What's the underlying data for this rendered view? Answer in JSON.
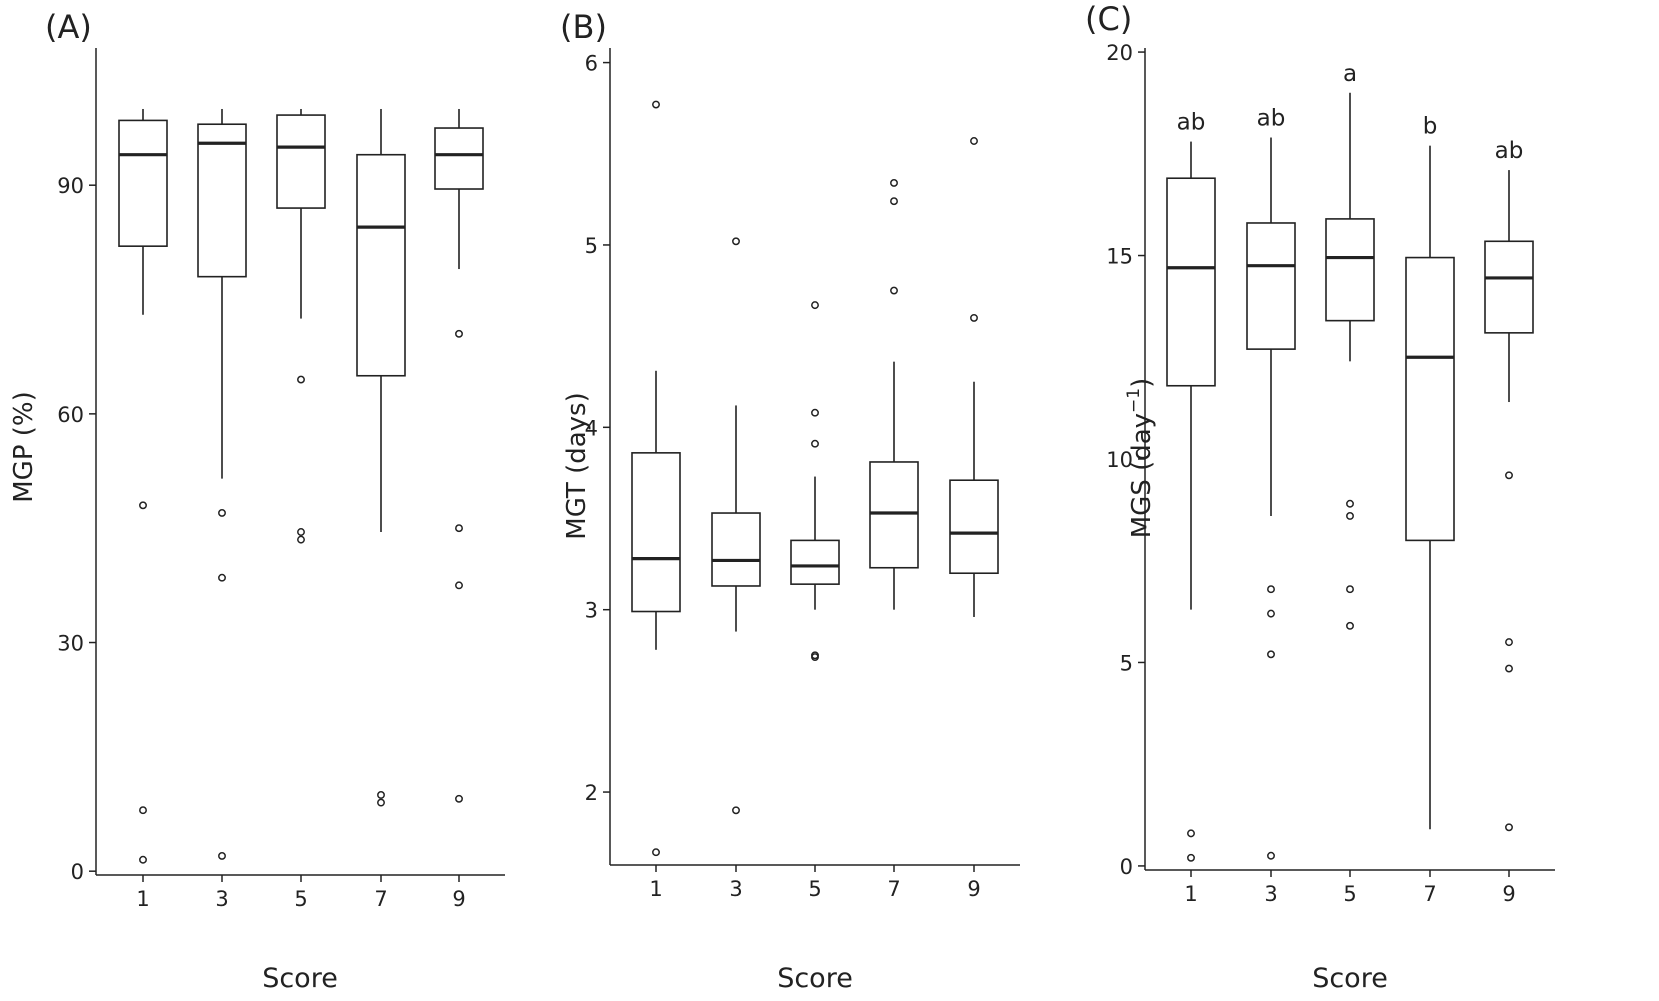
{
  "chart_data": [
    {
      "type": "box",
      "panel_label": "(A)",
      "xlabel": "Score",
      "ylabel": "MGP (%)",
      "ylim": [
        -0.5,
        108
      ],
      "yticks": [
        0,
        30,
        60,
        90
      ],
      "categories": [
        "1",
        "3",
        "5",
        "7",
        "9"
      ],
      "boxes": [
        {
          "q1": 82,
          "median": 94,
          "q3": 98.5,
          "whisker_low": 73,
          "whisker_high": 100,
          "outliers": [
            48,
            8,
            1.5
          ]
        },
        {
          "q1": 78,
          "median": 95.5,
          "q3": 98,
          "whisker_low": 51.5,
          "whisker_high": 100,
          "outliers": [
            47,
            38.5,
            2
          ]
        },
        {
          "q1": 87,
          "median": 95,
          "q3": 99.2,
          "whisker_low": 72.5,
          "whisker_high": 100,
          "outliers": [
            64.5,
            44.5,
            43.5
          ]
        },
        {
          "q1": 65,
          "median": 84.5,
          "q3": 94,
          "whisker_low": 44.5,
          "whisker_high": 100,
          "outliers": [
            10,
            9
          ]
        },
        {
          "q1": 89.5,
          "median": 94,
          "q3": 97.5,
          "whisker_low": 79,
          "whisker_high": 100,
          "outliers": [
            70.5,
            45,
            37.5,
            9.5
          ]
        }
      ]
    },
    {
      "type": "box",
      "panel_label": "(B)",
      "xlabel": "Score",
      "ylabel": "MGT (days)",
      "ylim": [
        1.6,
        6.08
      ],
      "yticks": [
        2,
        3,
        4,
        5,
        6
      ],
      "categories": [
        "1",
        "3",
        "5",
        "7",
        "9"
      ],
      "boxes": [
        {
          "q1": 2.99,
          "median": 3.28,
          "q3": 3.86,
          "whisker_low": 2.78,
          "whisker_high": 4.31,
          "outliers": [
            5.77,
            1.67
          ]
        },
        {
          "q1": 3.13,
          "median": 3.27,
          "q3": 3.53,
          "whisker_low": 2.88,
          "whisker_high": 4.12,
          "outliers": [
            5.02,
            1.9
          ]
        },
        {
          "q1": 3.14,
          "median": 3.24,
          "q3": 3.38,
          "whisker_low": 3.0,
          "whisker_high": 3.73,
          "outliers": [
            4.67,
            4.08,
            3.91,
            2.75,
            2.74
          ]
        },
        {
          "q1": 3.23,
          "median": 3.53,
          "q3": 3.81,
          "whisker_low": 3.0,
          "whisker_high": 4.36,
          "outliers": [
            5.34,
            5.24,
            4.75
          ]
        },
        {
          "q1": 3.2,
          "median": 3.42,
          "q3": 3.71,
          "whisker_low": 2.96,
          "whisker_high": 4.25,
          "outliers": [
            5.57,
            4.6
          ]
        }
      ]
    },
    {
      "type": "box",
      "panel_label": "(C)",
      "xlabel": "Score",
      "ylabel_main": "MGS (day",
      "ylabel_sup": "−1",
      "ylabel_close": ")",
      "ylim": [
        -0.1,
        20.1
      ],
      "yticks": [
        0,
        5,
        10,
        15,
        20
      ],
      "categories": [
        "1",
        "3",
        "5",
        "7",
        "9"
      ],
      "annotations": [
        "ab",
        "ab",
        "a",
        "b",
        "ab"
      ],
      "boxes": [
        {
          "q1": 11.8,
          "median": 14.7,
          "q3": 16.9,
          "whisker_low": 6.3,
          "whisker_high": 17.8,
          "outliers": [
            0.8,
            0.2
          ]
        },
        {
          "q1": 12.7,
          "median": 14.75,
          "q3": 15.8,
          "whisker_low": 8.6,
          "whisker_high": 17.9,
          "outliers": [
            6.8,
            6.2,
            5.2,
            0.25
          ]
        },
        {
          "q1": 13.4,
          "median": 14.95,
          "q3": 15.9,
          "whisker_low": 12.4,
          "whisker_high": 19.0,
          "outliers": [
            8.9,
            8.6,
            6.8,
            5.9
          ]
        },
        {
          "q1": 8.0,
          "median": 12.5,
          "q3": 14.95,
          "whisker_low": 0.9,
          "whisker_high": 17.7,
          "outliers": []
        },
        {
          "q1": 13.1,
          "median": 14.45,
          "q3": 15.35,
          "whisker_low": 11.4,
          "whisker_high": 17.1,
          "outliers": [
            9.6,
            5.5,
            4.85,
            0.95
          ]
        }
      ]
    }
  ]
}
